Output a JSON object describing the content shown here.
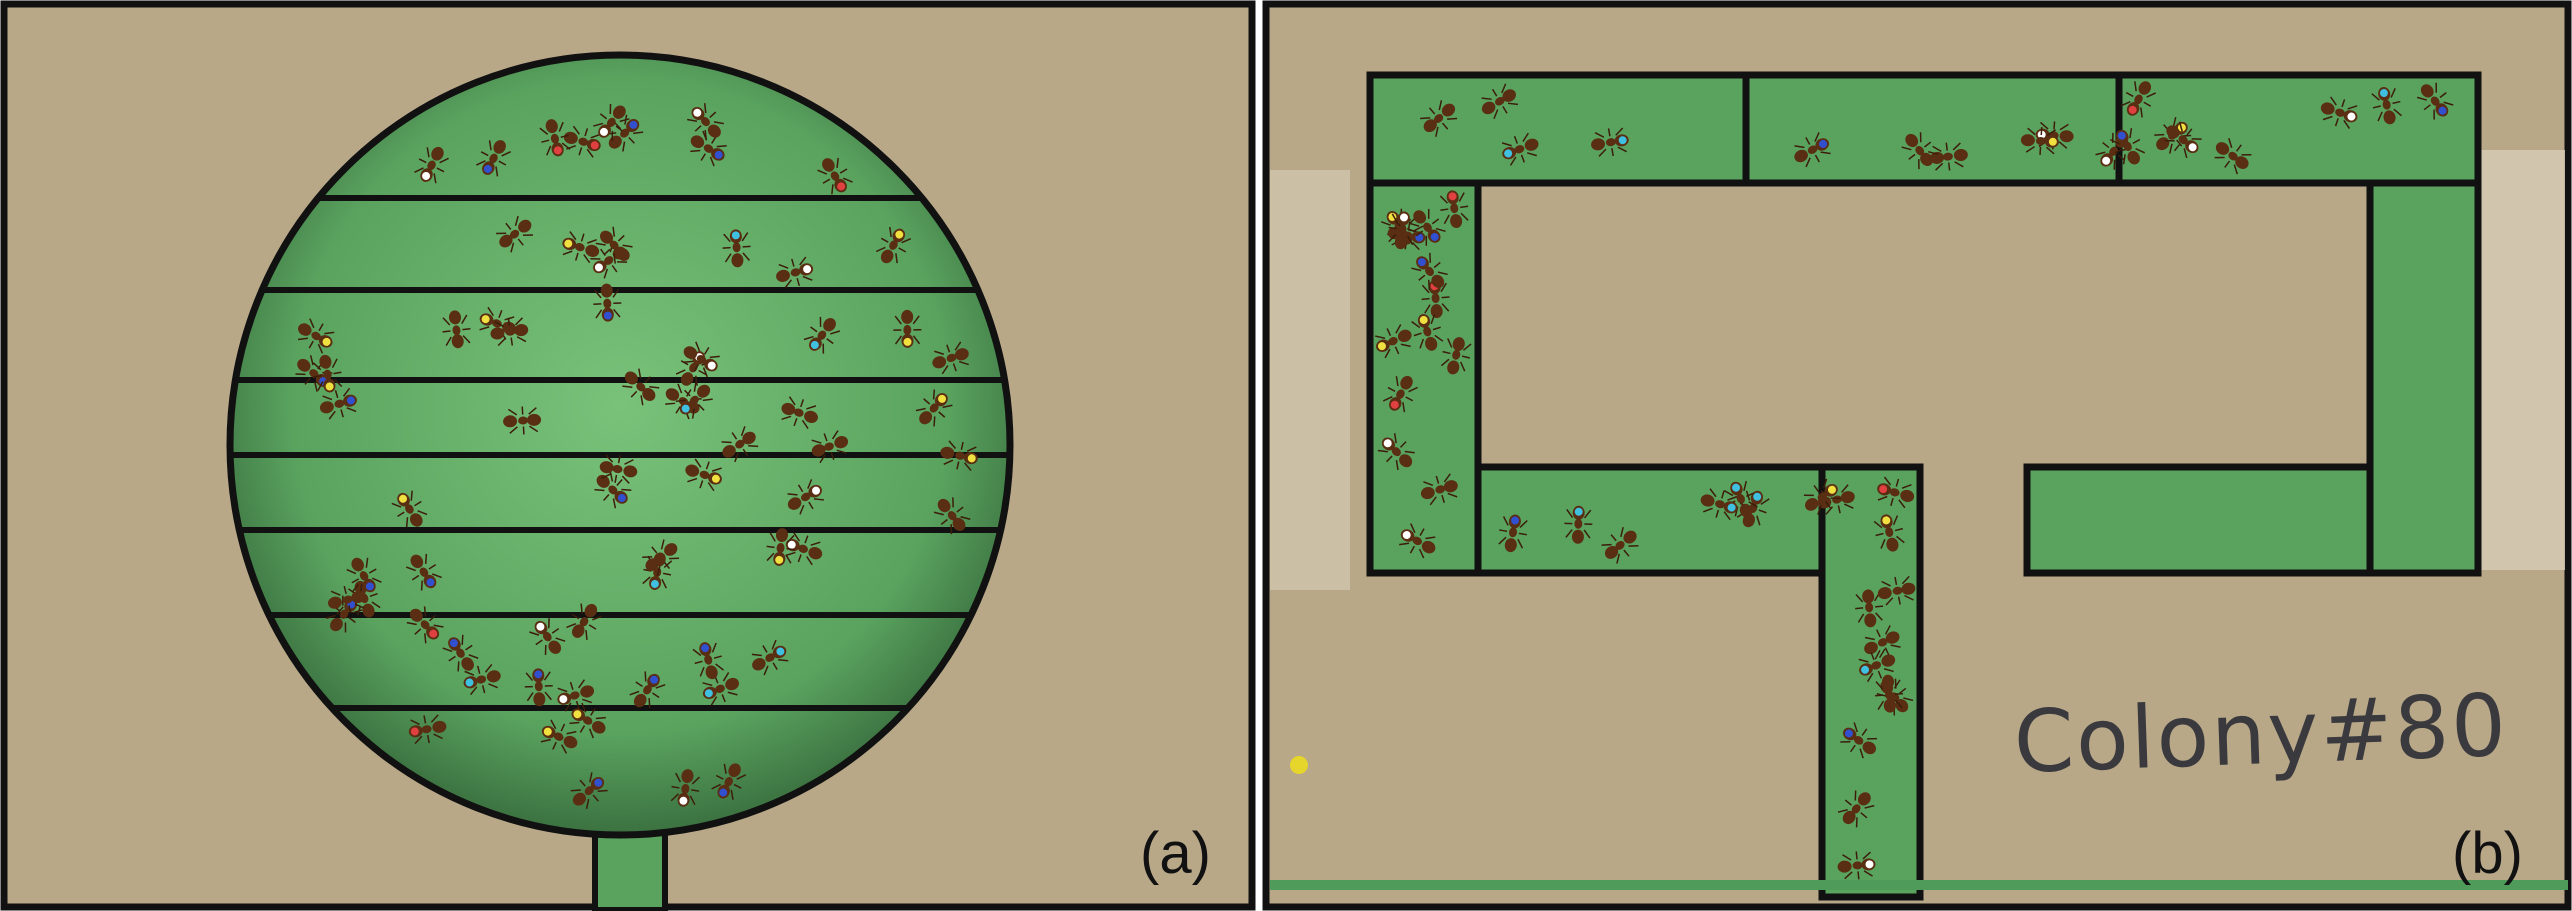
{
  "panels": [
    {
      "id": "a",
      "label": "(a)",
      "arena": "circular-chamber-with-horizontal-bands"
    },
    {
      "id": "b",
      "label": "(b)",
      "arena": "rectangular-corridor-nest",
      "handwritten_text": "Colony#80"
    }
  ],
  "colors": {
    "cardboard": "#b8a888",
    "nest_green": "#5aa35f",
    "outline": "#111111",
    "ant_body": "#5a2e12"
  }
}
